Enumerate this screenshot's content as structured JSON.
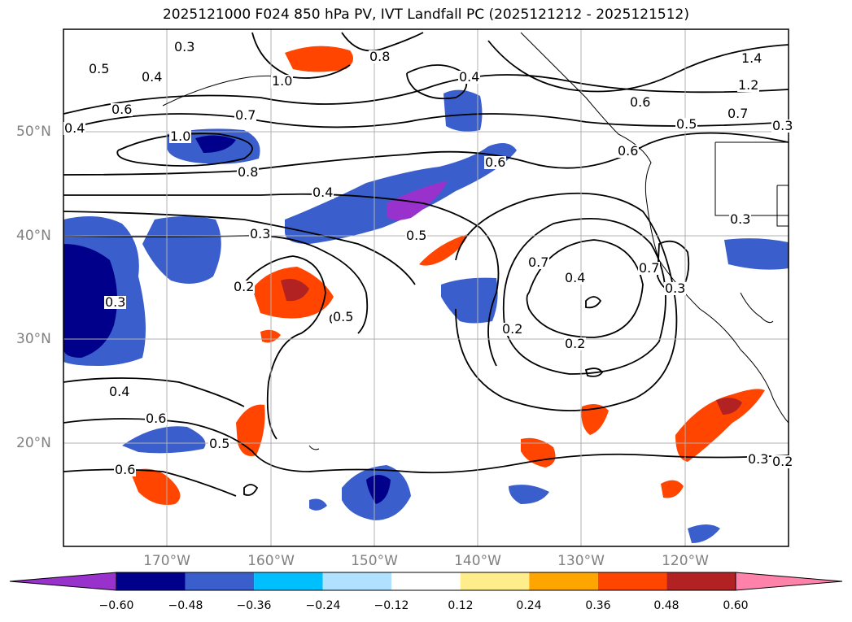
{
  "title": "2025121000 F024 850 hPa PV, IVT Landfall PC (2025121212 - 2025121512)",
  "lat_labels": [
    "50°N",
    "40°N",
    "30°N",
    "20°N"
  ],
  "lon_labels": [
    "170°W",
    "160°W",
    "150°W",
    "140°W",
    "130°W",
    "120°W"
  ],
  "contour_labels": [
    "0.3",
    "0.5",
    "0.4",
    "0.6",
    "0.7",
    "1.0",
    "0.8",
    "0.8",
    "0.4",
    "1.0",
    "1.4",
    "1.2",
    "0.7",
    "0.6",
    "0.5",
    "0.6",
    "0.6",
    "0.4",
    "0.5",
    "0.7",
    "0.5",
    "0.3",
    "0.2",
    "0.5",
    "0.3",
    "0.3",
    "0.4",
    "0.2",
    "0.2",
    "0.7",
    "0.3",
    "0.4",
    "0.6",
    "0.5",
    "0.6",
    "0.3",
    "0.4",
    "0.3",
    "0.2"
  ],
  "colorbar": {
    "ticks": [
      "−0.60",
      "−0.48",
      "−0.36",
      "−0.24",
      "−0.12",
      "0.12",
      "0.24",
      "0.36",
      "0.48",
      "0.60"
    ],
    "colors": [
      "#9932cc",
      "#00008b",
      "#3a5fcd",
      "#00bfff",
      "#b0e2ff",
      "#ffffff",
      "#ffec8b",
      "#ffa500",
      "#ff4500",
      "#b22222",
      "#ff82ab"
    ]
  }
}
